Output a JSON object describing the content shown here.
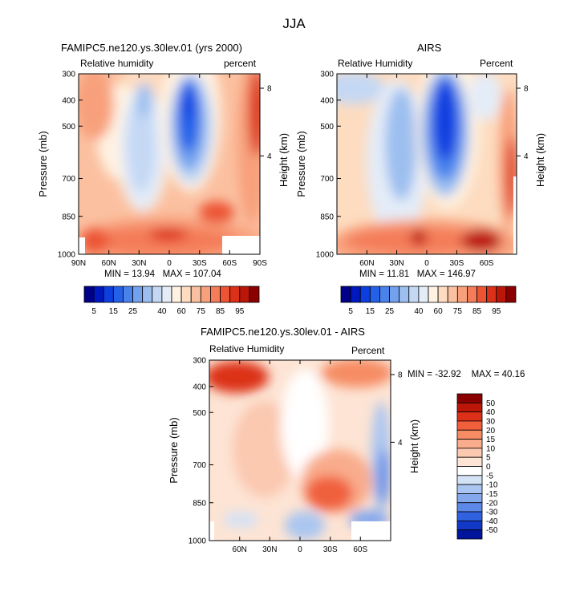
{
  "title": "JJA",
  "chart_data": [
    {
      "type": "heatmap",
      "title": "FAMIPC5.ne120.ys.30lev.01 (yrs 2000)",
      "subtitle_left": "Relative humidity",
      "subtitle_right": "percent",
      "ylabel": "Pressure (mb)",
      "ylabel_right": "Height (km)",
      "x_ticks": [
        "90N",
        "60N",
        "30N",
        "0",
        "30S",
        "60S",
        "90S"
      ],
      "y_ticks": [
        "300",
        "400",
        "500",
        "700",
        "850",
        "1000"
      ],
      "height_ticks": [
        "8",
        "4"
      ],
      "stats": {
        "min_label": "MIN =",
        "min": "13.94",
        "max_label": "MAX =",
        "max": "107.04"
      },
      "colorbar_labels": [
        "5",
        "15",
        "25",
        "40",
        "60",
        "75",
        "85",
        "95"
      ],
      "colors": [
        "#00008a",
        "#0018c0",
        "#0c3ee0",
        "#2460e8",
        "#4a82ec",
        "#72a2ee",
        "#9cbff0",
        "#c4d8f4",
        "#e4ecf8",
        "#fff2e2",
        "#fddcc0",
        "#fbc0a0",
        "#f8a07c",
        "#f47c58",
        "#ec5434",
        "#dc3018",
        "#bc1608",
        "#8a0000"
      ],
      "levels": [
        5,
        10,
        15,
        20,
        25,
        30,
        35,
        40,
        50,
        60,
        65,
        75,
        80,
        85,
        90,
        95,
        100
      ]
    },
    {
      "type": "heatmap",
      "title": "AIRS",
      "subtitle_left": "Relative Humidity",
      "subtitle_right": "Percent",
      "ylabel": "Pressure (mb)",
      "ylabel_right": "Height (km)",
      "x_ticks": [
        "60N",
        "30N",
        "0",
        "30S",
        "60S"
      ],
      "y_ticks": [
        "300",
        "400",
        "500",
        "700",
        "850",
        "1000"
      ],
      "height_ticks": [
        "8",
        "4"
      ],
      "stats": {
        "min_label": "MIN =",
        "min": "11.81",
        "max_label": "MAX =",
        "max": "146.97"
      },
      "colorbar_labels": [
        "5",
        "15",
        "25",
        "40",
        "60",
        "75",
        "85",
        "95"
      ],
      "colors": [
        "#00008a",
        "#0018c0",
        "#0c3ee0",
        "#2460e8",
        "#4a82ec",
        "#72a2ee",
        "#9cbff0",
        "#c4d8f4",
        "#e4ecf8",
        "#fff2e2",
        "#fddcc0",
        "#fbc0a0",
        "#f8a07c",
        "#f47c58",
        "#ec5434",
        "#dc3018",
        "#bc1608",
        "#8a0000"
      ],
      "levels": [
        5,
        10,
        15,
        20,
        25,
        30,
        35,
        40,
        50,
        60,
        65,
        75,
        80,
        85,
        90,
        95,
        100
      ]
    },
    {
      "type": "heatmap",
      "title": "FAMIPC5.ne120.ys.30lev.01 - AIRS",
      "subtitle_left": "Relative Humidity",
      "subtitle_right": "Percent",
      "ylabel": "Pressure (mb)",
      "ylabel_right": "Height (km)",
      "x_ticks": [
        "60N",
        "30N",
        "0",
        "30S",
        "60S"
      ],
      "y_ticks": [
        "300",
        "400",
        "500",
        "700",
        "850",
        "1000"
      ],
      "height_ticks": [
        "8",
        "4"
      ],
      "stats": {
        "min_label": "MIN =",
        "min": "-32.92",
        "max_label": "MAX =",
        "max": "40.16"
      },
      "colorbar_labels": [
        "50",
        "40",
        "30",
        "20",
        "15",
        "10",
        "5",
        "0",
        "-5",
        "-10",
        "-15",
        "-20",
        "-30",
        "-40",
        "-50"
      ],
      "colors": [
        "#8a0000",
        "#bc1608",
        "#dc3018",
        "#f0603c",
        "#f68c64",
        "#f9ac8c",
        "#fbc8b0",
        "#fde4d4",
        "#ffffff",
        "#d4e2f6",
        "#aac6f0",
        "#84a8ec",
        "#5c88e8",
        "#3062e0",
        "#1238c8",
        "#00149c"
      ]
    }
  ]
}
